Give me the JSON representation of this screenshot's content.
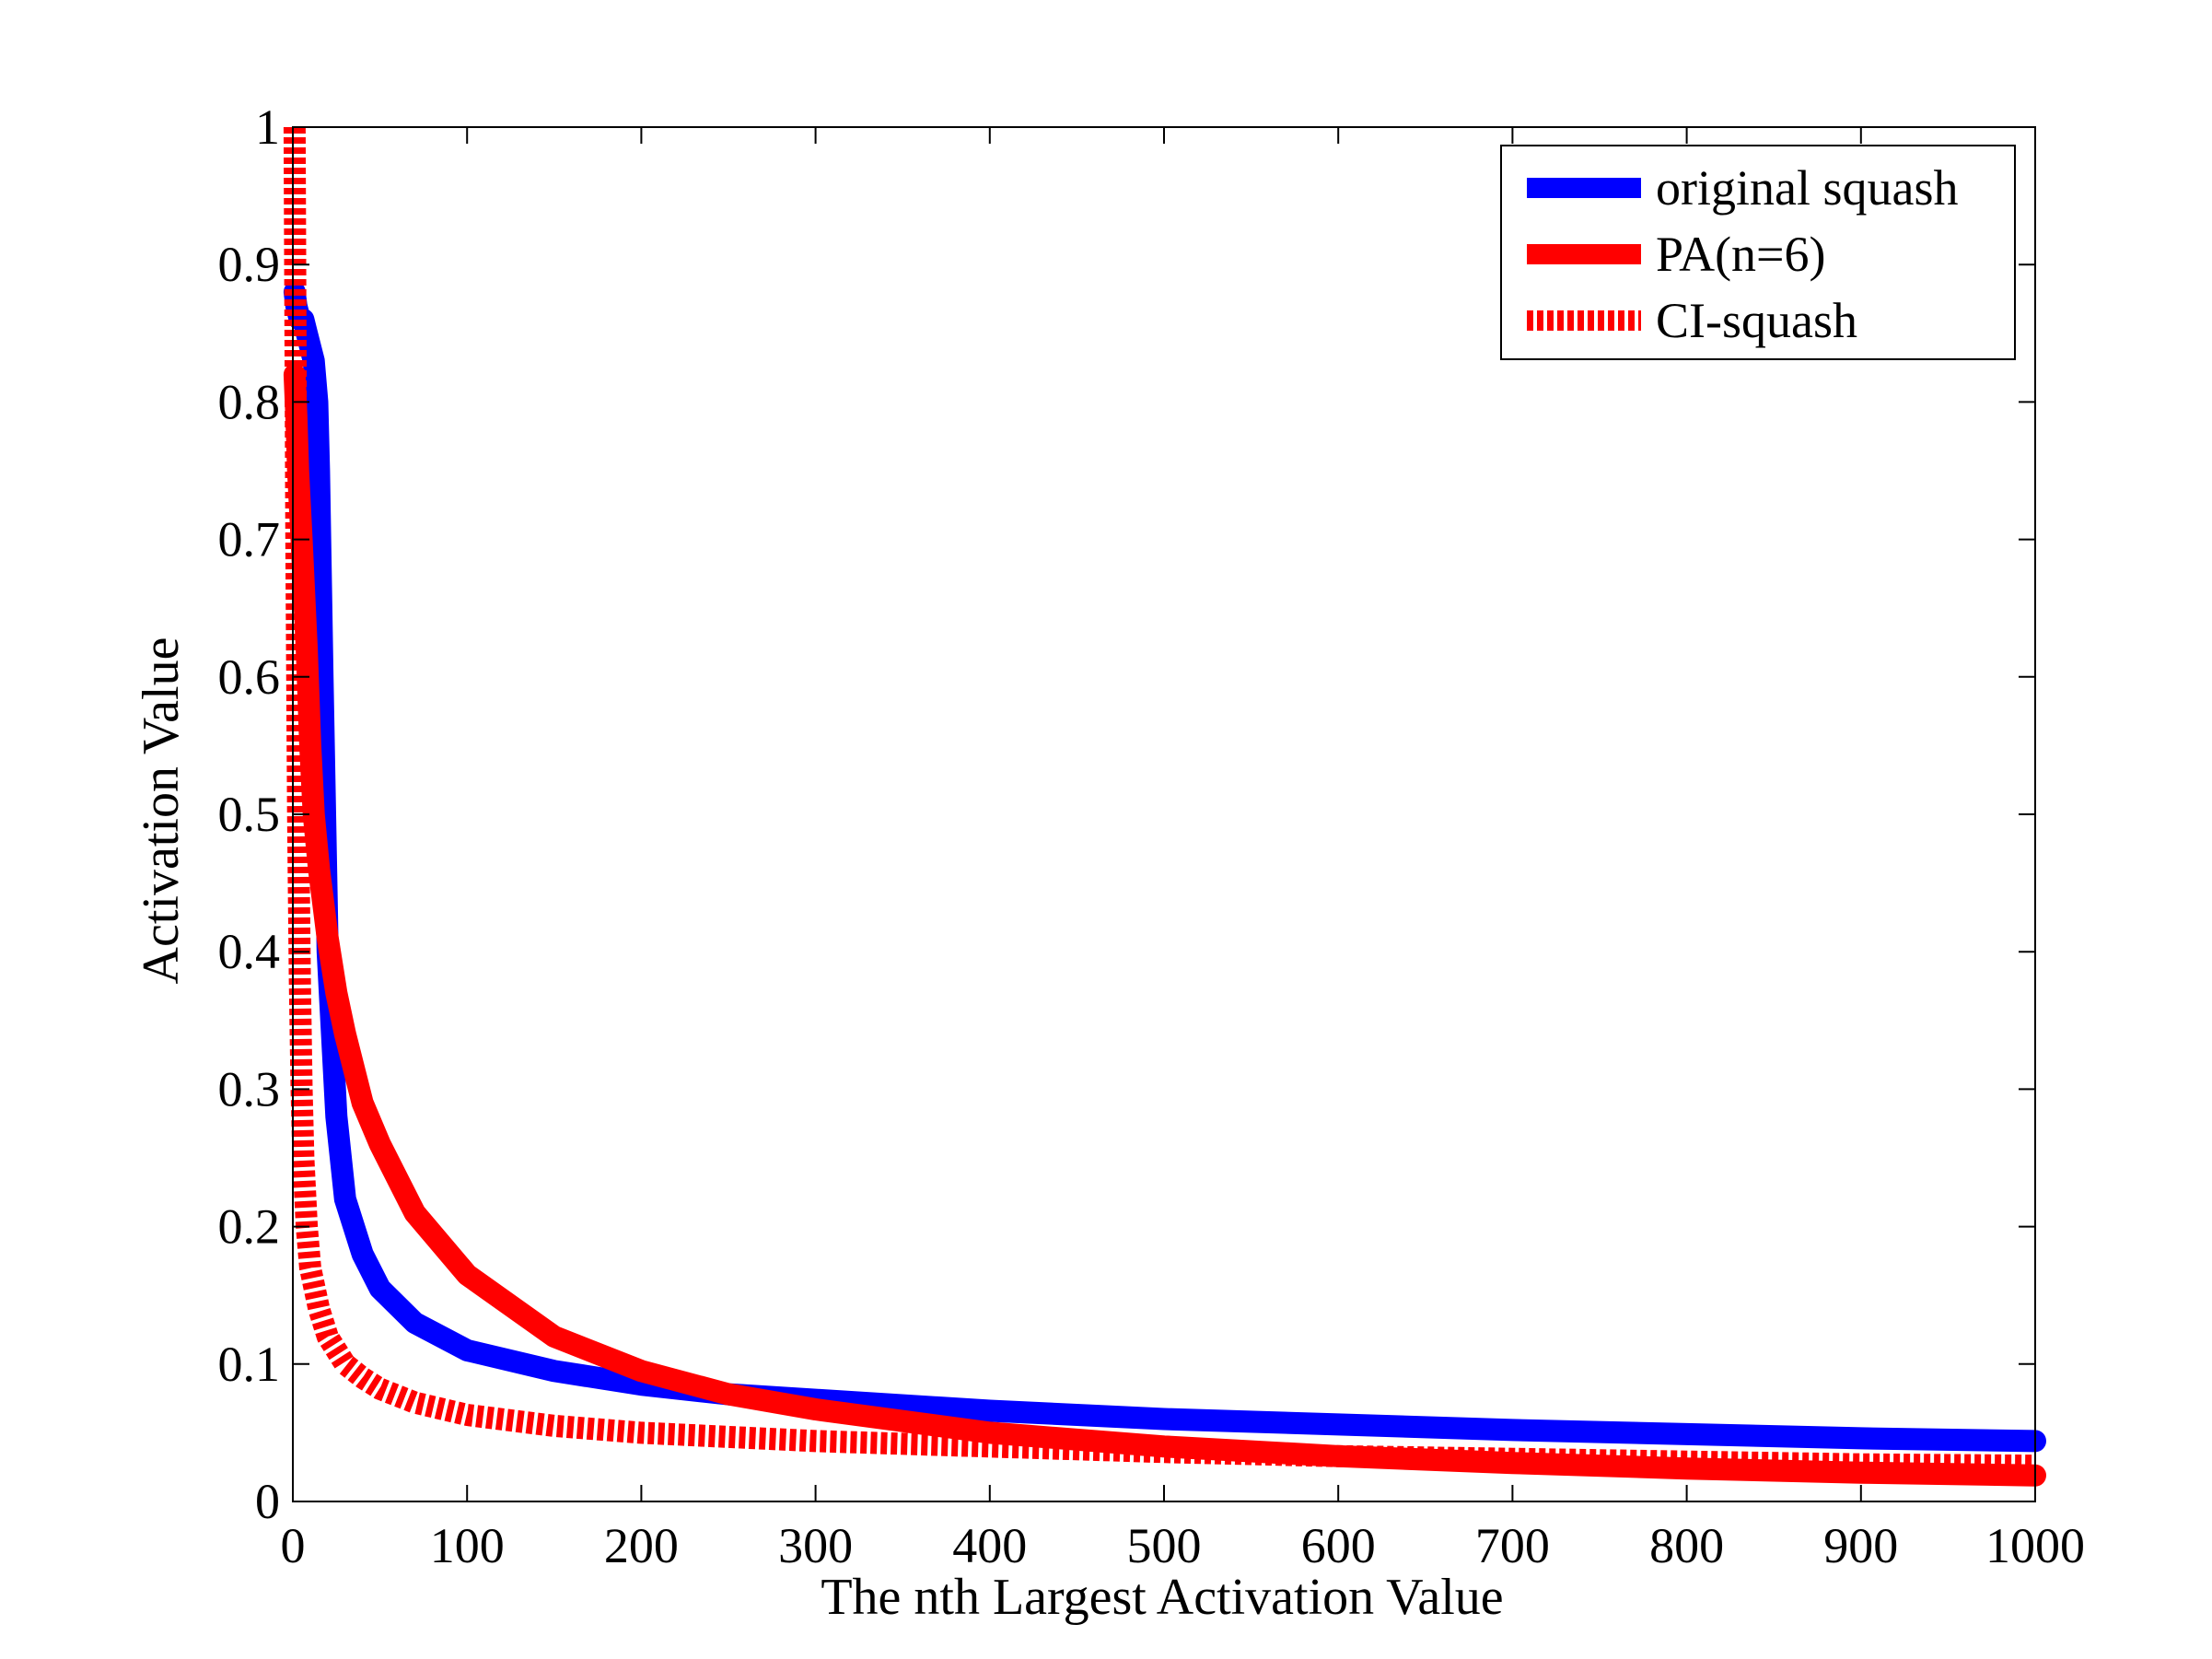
{
  "chart_data": {
    "type": "line",
    "xlabel": "The nth Largest Activation Value",
    "ylabel": "Activation Value",
    "xlim": [
      0,
      1000
    ],
    "ylim": [
      0,
      1
    ],
    "x_ticks": [
      "0",
      "100",
      "200",
      "300",
      "400",
      "500",
      "600",
      "700",
      "800",
      "900",
      "1000"
    ],
    "y_ticks": [
      "0",
      "0.1",
      "0.2",
      "0.3",
      "0.4",
      "0.5",
      "0.6",
      "0.7",
      "0.8",
      "0.9",
      "1"
    ],
    "grid": false,
    "legend_position": "top-right",
    "series": [
      {
        "name": "original squash",
        "color": "#0000ff",
        "style": "solid",
        "x": [
          1,
          2,
          4,
          6,
          8,
          10,
          12,
          14,
          15,
          17,
          20,
          25,
          30,
          40,
          50,
          70,
          100,
          150,
          200,
          250,
          300,
          400,
          500,
          600,
          700,
          800,
          900,
          1000
        ],
        "y": [
          0.88,
          0.87,
          0.86,
          0.86,
          0.85,
          0.84,
          0.83,
          0.8,
          0.75,
          0.6,
          0.4,
          0.28,
          0.22,
          0.18,
          0.155,
          0.13,
          0.11,
          0.095,
          0.085,
          0.078,
          0.074,
          0.066,
          0.06,
          0.056,
          0.052,
          0.049,
          0.046,
          0.044
        ]
      },
      {
        "name": "PA(n=6)",
        "color": "#ff0000",
        "style": "solid",
        "x": [
          1,
          2,
          3,
          5,
          8,
          10,
          12,
          15,
          20,
          25,
          30,
          40,
          50,
          70,
          100,
          150,
          200,
          250,
          300,
          400,
          500,
          600,
          700,
          800,
          900,
          1000
        ],
        "y": [
          0.82,
          0.79,
          0.75,
          0.7,
          0.62,
          0.55,
          0.5,
          0.46,
          0.41,
          0.37,
          0.34,
          0.29,
          0.26,
          0.21,
          0.165,
          0.12,
          0.095,
          0.078,
          0.067,
          0.05,
          0.04,
          0.033,
          0.028,
          0.024,
          0.021,
          0.019
        ]
      },
      {
        "name": "CI-squash",
        "color": "#ff0000",
        "style": "dotted",
        "x": [
          1,
          2,
          3,
          4,
          5,
          6,
          8,
          10,
          15,
          20,
          30,
          40,
          50,
          70,
          100,
          150,
          200,
          300,
          400,
          500,
          600,
          700,
          800,
          900,
          1000
        ],
        "y": [
          1.0,
          0.7,
          0.5,
          0.38,
          0.3,
          0.25,
          0.2,
          0.17,
          0.14,
          0.12,
          0.1,
          0.09,
          0.082,
          0.072,
          0.063,
          0.055,
          0.05,
          0.044,
          0.04,
          0.036,
          0.033,
          0.031,
          0.029,
          0.027,
          0.026
        ]
      }
    ]
  }
}
